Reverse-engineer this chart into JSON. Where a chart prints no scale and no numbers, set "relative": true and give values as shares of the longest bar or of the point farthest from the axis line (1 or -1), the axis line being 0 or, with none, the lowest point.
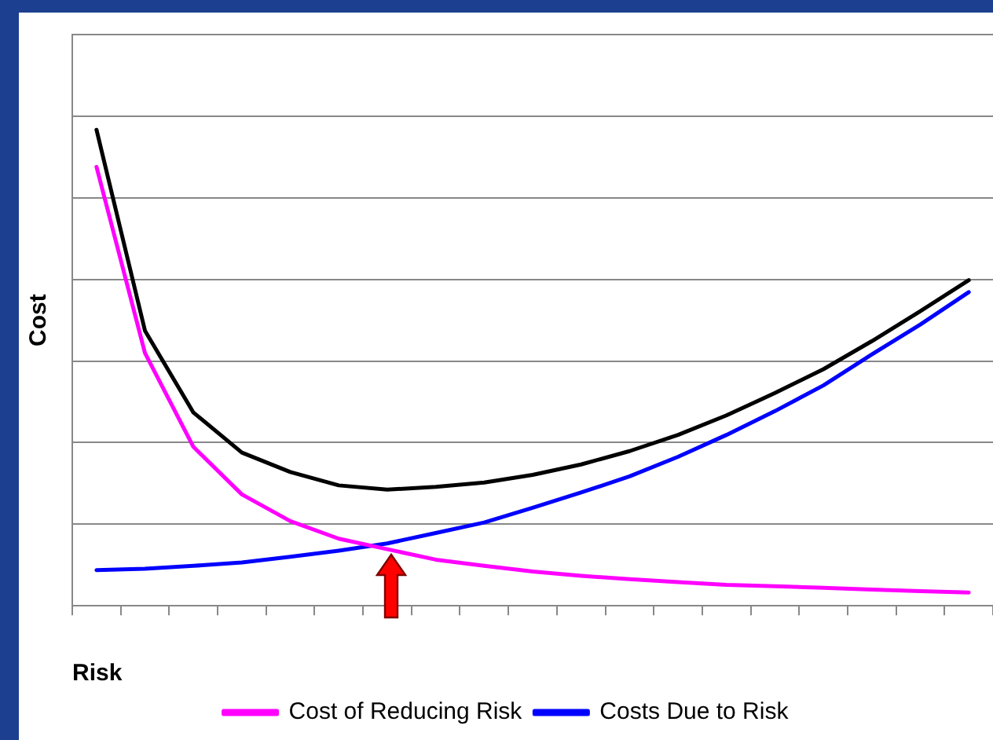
{
  "chart_data": {
    "type": "line",
    "relative": true,
    "xlabel": "Risk",
    "ylabel": "Cost",
    "categories": [
      null,
      null,
      null,
      null,
      null,
      null,
      null,
      null,
      null,
      null,
      null,
      null,
      null,
      null,
      null,
      null,
      null,
      null,
      null
    ],
    "series": [
      {
        "name": "Cost of Reducing Risk",
        "color": "#ff00ff",
        "values": [
          0.922,
          0.531,
          0.334,
          0.234,
          0.178,
          0.141,
          0.119,
          0.097,
          0.084,
          0.072,
          0.063,
          0.056,
          0.05,
          0.044,
          0.041,
          0.038,
          0.034,
          0.031,
          0.028
        ]
      },
      {
        "name": "Costs Due to Risk",
        "color": "#0000ff",
        "values": [
          0.075,
          0.078,
          0.084,
          0.091,
          0.103,
          0.116,
          0.131,
          0.153,
          0.175,
          0.206,
          0.238,
          0.272,
          0.313,
          0.359,
          0.409,
          0.463,
          0.528,
          0.591,
          0.659
        ]
      },
      {
        "color": "#000000",
        "values": [
          1,
          0.578,
          0.406,
          0.322,
          0.281,
          0.253,
          0.244,
          0.25,
          0.259,
          0.275,
          0.297,
          0.325,
          0.359,
          0.4,
          0.447,
          0.497,
          0.556,
          0.619,
          0.684
        ]
      }
    ],
    "grid": "y",
    "legend": "bottom",
    "marker": "none",
    "line_style": "solid"
  }
}
